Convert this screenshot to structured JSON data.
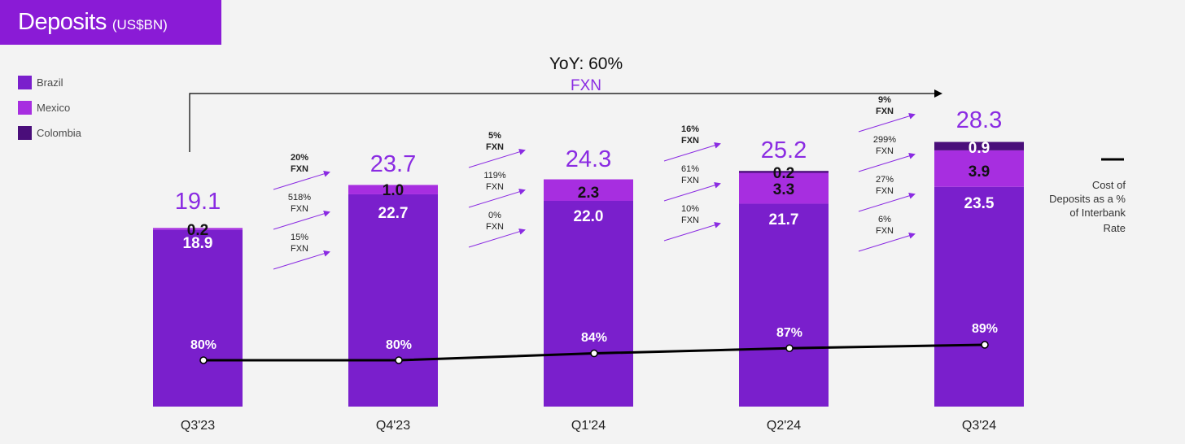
{
  "title": {
    "main": "Deposits",
    "unit": "(US$BN)"
  },
  "legend": [
    {
      "label": "Brazil",
      "color": "#7a1fcc"
    },
    {
      "label": "Mexico",
      "color": "#a72ee0"
    },
    {
      "label": "Colombia",
      "color": "#4a0e7a"
    }
  ],
  "yoy": {
    "label": "YoY: 60%",
    "sub": "FXN"
  },
  "cost_label": [
    "Cost of",
    "Deposits as a %",
    "of Interbank",
    "Rate"
  ],
  "chart_data": {
    "type": "bar",
    "stacked": true,
    "categories": [
      "Q3'23",
      "Q4'23",
      "Q1'24",
      "Q2'24",
      "Q3'24"
    ],
    "series": [
      {
        "name": "Brazil",
        "values": [
          18.9,
          22.7,
          22.0,
          21.7,
          23.5
        ],
        "labels": [
          "18.9",
          "22.7",
          "22.0",
          "21.7",
          "23.5"
        ]
      },
      {
        "name": "Mexico",
        "values": [
          0.2,
          1.0,
          2.3,
          3.3,
          3.9
        ],
        "labels": [
          "0.2",
          "1.0",
          "2.3",
          "3.3",
          "3.9"
        ]
      },
      {
        "name": "Colombia",
        "values": [
          0,
          0,
          0,
          0.2,
          0.9
        ],
        "labels": [
          "",
          "",
          "",
          "0.2",
          "0.9"
        ]
      }
    ],
    "totals": [
      "19.1",
      "23.7",
      "24.3",
      "25.2",
      "28.3"
    ],
    "line": {
      "name": "Cost of Deposits as a % of Interbank Rate",
      "values": [
        80,
        80,
        84,
        87,
        89
      ],
      "labels": [
        "80%",
        "80%",
        "84%",
        "87%",
        "89%"
      ]
    },
    "growth": [
      [
        {
          "pct": "20%",
          "unit": "FXN",
          "bold": true
        },
        {
          "pct": "518%",
          "unit": "FXN",
          "bold": false
        },
        {
          "pct": "15%",
          "unit": "FXN",
          "bold": false
        }
      ],
      [
        {
          "pct": "5%",
          "unit": "FXN",
          "bold": true
        },
        {
          "pct": "119%",
          "unit": "FXN",
          "bold": false
        },
        {
          "pct": "0%",
          "unit": "FXN",
          "bold": false
        }
      ],
      [
        {
          "pct": "16%",
          "unit": "FXN",
          "bold": true
        },
        {
          "pct": "61%",
          "unit": "FXN",
          "bold": false
        },
        {
          "pct": "10%",
          "unit": "FXN",
          "bold": false
        }
      ],
      [
        {
          "pct": "9%",
          "unit": "FXN",
          "bold": true
        },
        {
          "pct": "299%",
          "unit": "FXN",
          "bold": false
        },
        {
          "pct": "27%",
          "unit": "FXN",
          "bold": false
        },
        {
          "pct": "6%",
          "unit": "FXN",
          "bold": false
        }
      ]
    ],
    "colors": {
      "total": "#8a2be2",
      "arrow": "#8a2be2",
      "line": "#000000"
    }
  }
}
